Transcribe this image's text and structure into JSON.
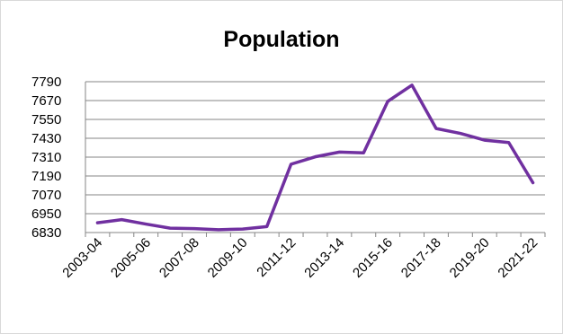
{
  "chart_data": {
    "type": "line",
    "title": "Population",
    "xlabel": "",
    "ylabel": "",
    "categories": [
      "2003-04",
      "2004-05",
      "2005-06",
      "2006-07",
      "2007-08",
      "2008-09",
      "2009-10",
      "2010-11",
      "2011-12",
      "2012-13",
      "2013-14",
      "2014-15",
      "2015-16",
      "2016-17",
      "2017-18",
      "2018-19",
      "2019-20",
      "2020-21",
      "2021-22"
    ],
    "x_tick_labels": [
      "2003-04",
      "2005-06",
      "2007-08",
      "2009-10",
      "2011-12",
      "2013-14",
      "2015-16",
      "2017-18",
      "2019-20",
      "2021-22"
    ],
    "series": [
      {
        "values": [
          6892,
          6912,
          6884,
          6858,
          6855,
          6848,
          6852,
          6868,
          7265,
          7312,
          7342,
          7337,
          7665,
          7768,
          7492,
          7461,
          7418,
          7403,
          7147
        ]
      }
    ],
    "ylim": [
      6830,
      7790
    ],
    "y_ticks": [
      6830,
      6950,
      7070,
      7190,
      7310,
      7430,
      7550,
      7670,
      7790
    ],
    "grid": true,
    "legend": "none",
    "colors": {
      "line": "#7030a0",
      "grid": "#868686",
      "axis": "#868686",
      "frame": "#d9d9d9"
    }
  }
}
